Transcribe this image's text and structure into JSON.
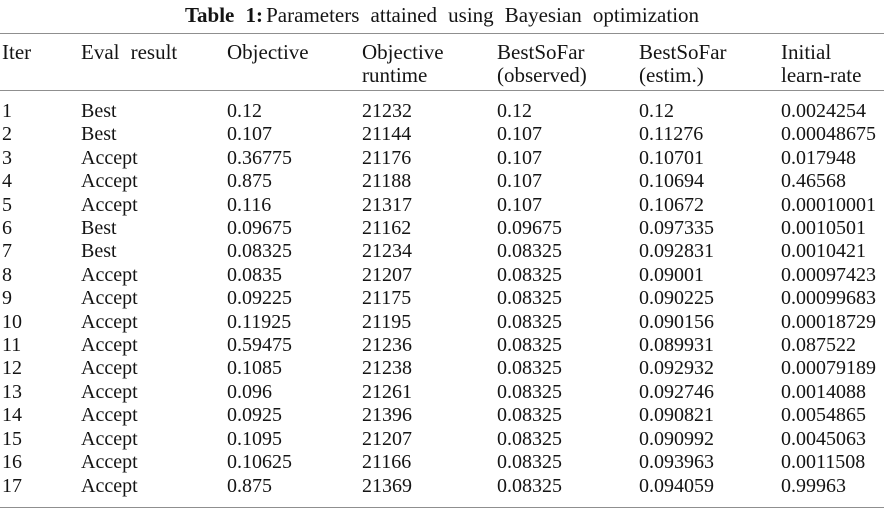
{
  "title": {
    "label": "Table 1:",
    "text": "Parameters attained using Bayesian optimization"
  },
  "table": {
    "columns": [
      {
        "id": "iter",
        "lines": [
          "Iter"
        ]
      },
      {
        "id": "eval-result",
        "lines": [
          "Eval result"
        ]
      },
      {
        "id": "objective",
        "lines": [
          "Objective"
        ]
      },
      {
        "id": "objective-runtime",
        "lines": [
          "Objective",
          "runtime"
        ]
      },
      {
        "id": "bestsofar-observed",
        "lines": [
          "BestSoFar",
          "(observed)"
        ]
      },
      {
        "id": "bestsofar-estim",
        "lines": [
          "BestSoFar",
          "(estim.)"
        ]
      },
      {
        "id": "initial-learn-rate",
        "lines": [
          "Initial",
          "learn-rate"
        ]
      }
    ],
    "rows": [
      [
        "1",
        "Best",
        "0.12",
        "21232",
        "0.12",
        "0.12",
        "0.0024254"
      ],
      [
        "2",
        "Best",
        "0.107",
        "21144",
        "0.107",
        "0.11276",
        "0.00048675"
      ],
      [
        "3",
        "Accept",
        "0.36775",
        "21176",
        "0.107",
        "0.10701",
        "0.017948"
      ],
      [
        "4",
        "Accept",
        "0.875",
        "21188",
        "0.107",
        "0.10694",
        "0.46568"
      ],
      [
        "5",
        "Accept",
        "0.116",
        "21317",
        "0.107",
        "0.10672",
        "0.00010001"
      ],
      [
        "6",
        "Best",
        "0.09675",
        "21162",
        "0.09675",
        "0.097335",
        "0.0010501"
      ],
      [
        "7",
        "Best",
        "0.08325",
        "21234",
        "0.08325",
        "0.092831",
        "0.0010421"
      ],
      [
        "8",
        "Accept",
        "0.0835",
        "21207",
        "0.08325",
        "0.09001",
        "0.00097423"
      ],
      [
        "9",
        "Accept",
        "0.09225",
        "21175",
        "0.08325",
        "0.090225",
        "0.00099683"
      ],
      [
        "10",
        "Accept",
        "0.11925",
        "21195",
        "0.08325",
        "0.090156",
        "0.00018729"
      ],
      [
        "11",
        "Accept",
        "0.59475",
        "21236",
        "0.08325",
        "0.089931",
        "0.087522"
      ],
      [
        "12",
        "Accept",
        "0.1085",
        "21238",
        "0.08325",
        "0.092932",
        "0.00079189"
      ],
      [
        "13",
        "Accept",
        "0.096",
        "21261",
        "0.08325",
        "0.092746",
        "0.0014088"
      ],
      [
        "14",
        "Accept",
        "0.0925",
        "21396",
        "0.08325",
        "0.090821",
        "0.0054865"
      ],
      [
        "15",
        "Accept",
        "0.1095",
        "21207",
        "0.08325",
        "0.090992",
        "0.0045063"
      ],
      [
        "16",
        "Accept",
        "0.10625",
        "21166",
        "0.08325",
        "0.093963",
        "0.0011508"
      ],
      [
        "17",
        "Accept",
        "0.875",
        "21369",
        "0.08325",
        "0.094059",
        "0.99963"
      ]
    ]
  }
}
